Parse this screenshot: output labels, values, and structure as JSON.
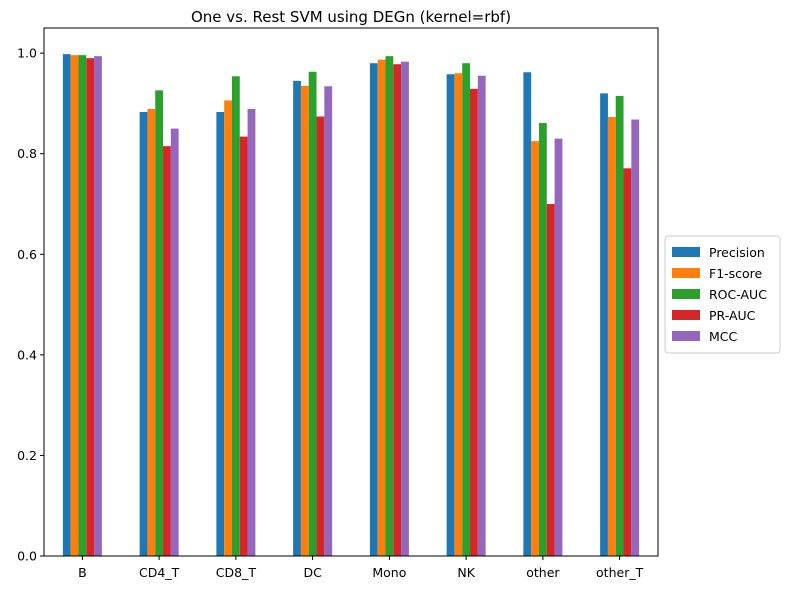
{
  "chart_data": {
    "type": "bar",
    "title": "One vs. Rest SVM using DEGn (kernel=rbf)",
    "xlabel": "",
    "ylabel": "",
    "categories": [
      "B",
      "CD4_T",
      "CD8_T",
      "DC",
      "Mono",
      "NK",
      "other",
      "other_T"
    ],
    "ylim": [
      0,
      1.05
    ],
    "yticks": [
      "0.0",
      "0.2",
      "0.4",
      "0.6",
      "0.8",
      "1.0"
    ],
    "legend_position": "center-right",
    "series": [
      {
        "name": "Precision",
        "color": "#1f77b4",
        "values": [
          0.998,
          0.883,
          0.883,
          0.945,
          0.98,
          0.958,
          0.962,
          0.92
        ]
      },
      {
        "name": "F1-score",
        "color": "#ff7f0e",
        "values": [
          0.996,
          0.889,
          0.906,
          0.935,
          0.987,
          0.96,
          0.825,
          0.873
        ]
      },
      {
        "name": "ROC-AUC",
        "color": "#2ca02c",
        "values": [
          0.996,
          0.926,
          0.954,
          0.963,
          0.994,
          0.98,
          0.861,
          0.915
        ]
      },
      {
        "name": "PR-AUC",
        "color": "#d62728",
        "values": [
          0.99,
          0.815,
          0.834,
          0.874,
          0.978,
          0.929,
          0.7,
          0.771
        ]
      },
      {
        "name": "MCC",
        "color": "#9467bd",
        "values": [
          0.994,
          0.85,
          0.889,
          0.934,
          0.983,
          0.955,
          0.83,
          0.868
        ]
      }
    ]
  }
}
